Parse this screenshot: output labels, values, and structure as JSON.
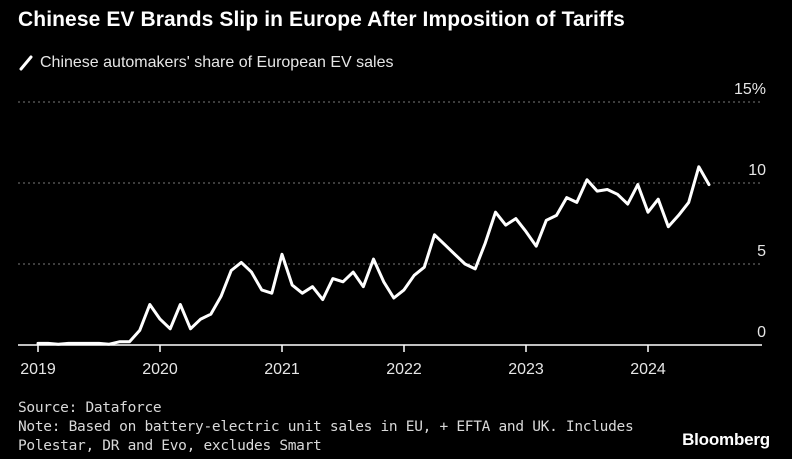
{
  "header": {
    "title": "Chinese EV Brands Slip in Europe After Imposition of Tariffs"
  },
  "footer": {
    "source": "Source: Dataforce",
    "note_line1": "Note: Based on battery-electric unit sales in EU, + EFTA and UK. Includes",
    "note_line2": "Polestar, DR and Evo, excludes Smart"
  },
  "brand": {
    "label": "Bloomberg"
  },
  "colors": {
    "background": "#000000",
    "line": "#ffffff",
    "grid": "#7a7a7a",
    "axis": "#ffffff"
  },
  "chart_data": {
    "type": "line",
    "title": "Chinese EV Brands Slip in Europe After Imposition of Tariffs",
    "ylabel": "",
    "xlabel": "",
    "ylim": [
      0,
      15
    ],
    "xlim": [
      "2019-01",
      "2024-12"
    ],
    "grid": "horizontal dotted",
    "y_ticks": [
      {
        "value": 0,
        "label": "0"
      },
      {
        "value": 5,
        "label": "5"
      },
      {
        "value": 10,
        "label": "10"
      },
      {
        "value": 15,
        "label": "15%"
      }
    ],
    "x_ticks": [
      {
        "value": "2019-01",
        "label": "2019"
      },
      {
        "value": "2020-01",
        "label": "2020"
      },
      {
        "value": "2021-01",
        "label": "2021"
      },
      {
        "value": "2022-01",
        "label": "2022"
      },
      {
        "value": "2023-01",
        "label": "2023"
      },
      {
        "value": "2024-01",
        "label": "2024"
      }
    ],
    "series": [
      {
        "name": "Chinese automakers' share of European EV sales",
        "points": [
          [
            "2019-01",
            0.1
          ],
          [
            "2019-02",
            0.1
          ],
          [
            "2019-03",
            0.05
          ],
          [
            "2019-04",
            0.1
          ],
          [
            "2019-05",
            0.1
          ],
          [
            "2019-06",
            0.1
          ],
          [
            "2019-07",
            0.1
          ],
          [
            "2019-08",
            0.05
          ],
          [
            "2019-09",
            0.2
          ],
          [
            "2019-10",
            0.2
          ],
          [
            "2019-11",
            0.9
          ],
          [
            "2019-12",
            2.5
          ],
          [
            "2020-01",
            1.6
          ],
          [
            "2020-02",
            1.0
          ],
          [
            "2020-03",
            2.5
          ],
          [
            "2020-04",
            1.0
          ],
          [
            "2020-05",
            1.6
          ],
          [
            "2020-06",
            1.9
          ],
          [
            "2020-07",
            3.0
          ],
          [
            "2020-08",
            4.6
          ],
          [
            "2020-09",
            5.1
          ],
          [
            "2020-10",
            4.5
          ],
          [
            "2020-11",
            3.4
          ],
          [
            "2020-12",
            3.2
          ],
          [
            "2021-01",
            5.6
          ],
          [
            "2021-02",
            3.7
          ],
          [
            "2021-03",
            3.2
          ],
          [
            "2021-04",
            3.6
          ],
          [
            "2021-05",
            2.8
          ],
          [
            "2021-06",
            4.1
          ],
          [
            "2021-07",
            3.9
          ],
          [
            "2021-08",
            4.5
          ],
          [
            "2021-09",
            3.6
          ],
          [
            "2021-10",
            5.3
          ],
          [
            "2021-11",
            3.9
          ],
          [
            "2021-12",
            2.9
          ],
          [
            "2022-01",
            3.4
          ],
          [
            "2022-02",
            4.3
          ],
          [
            "2022-03",
            4.8
          ],
          [
            "2022-04",
            6.8
          ],
          [
            "2022-05",
            6.2
          ],
          [
            "2022-06",
            5.6
          ],
          [
            "2022-07",
            5.0
          ],
          [
            "2022-08",
            4.7
          ],
          [
            "2022-09",
            6.3
          ],
          [
            "2022-10",
            8.2
          ],
          [
            "2022-11",
            7.4
          ],
          [
            "2022-12",
            7.8
          ],
          [
            "2023-01",
            7.0
          ],
          [
            "2023-02",
            6.1
          ],
          [
            "2023-03",
            7.7
          ],
          [
            "2023-04",
            8.0
          ],
          [
            "2023-05",
            9.1
          ],
          [
            "2023-06",
            8.8
          ],
          [
            "2023-07",
            10.2
          ],
          [
            "2023-08",
            9.5
          ],
          [
            "2023-09",
            9.6
          ],
          [
            "2023-10",
            9.3
          ],
          [
            "2023-11",
            8.7
          ],
          [
            "2023-12",
            9.9
          ],
          [
            "2024-01",
            8.2
          ],
          [
            "2024-02",
            9.0
          ],
          [
            "2024-03",
            7.3
          ],
          [
            "2024-04",
            8.0
          ],
          [
            "2024-05",
            8.8
          ],
          [
            "2024-06",
            11.0
          ],
          [
            "2024-07",
            9.9
          ]
        ]
      }
    ]
  }
}
